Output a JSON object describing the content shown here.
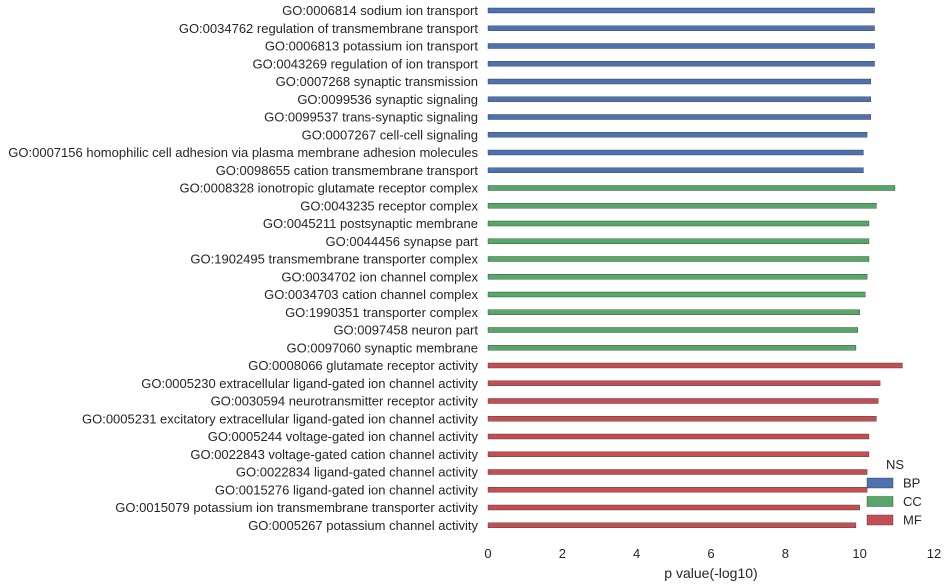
{
  "chart_data": {
    "type": "bar",
    "orientation": "horizontal",
    "title": "",
    "xlabel": "p value(-log10)",
    "ylabel": "",
    "xlim": [
      0,
      12
    ],
    "x_ticks": [
      "0",
      "2",
      "4",
      "6",
      "8",
      "10",
      "12"
    ],
    "grid": false,
    "legend": {
      "title": "NS",
      "placement": "bottom-right",
      "entries": [
        {
          "name": "BP",
          "color": "#4c72b0"
        },
        {
          "name": "CC",
          "color": "#55a868"
        },
        {
          "name": "MF",
          "color": "#c44e52"
        }
      ]
    },
    "bars": [
      {
        "label": "GO:0006814 sodium ion transport",
        "group": "BP",
        "value": 10.4
      },
      {
        "label": "GO:0034762 regulation of transmembrane transport",
        "group": "BP",
        "value": 10.4
      },
      {
        "label": "GO:0006813 potassium ion transport",
        "group": "BP",
        "value": 10.4
      },
      {
        "label": "GO:0043269 regulation of ion transport",
        "group": "BP",
        "value": 10.4
      },
      {
        "label": "GO:0007268 synaptic transmission",
        "group": "BP",
        "value": 10.3
      },
      {
        "label": "GO:0099536 synaptic signaling",
        "group": "BP",
        "value": 10.3
      },
      {
        "label": "GO:0099537 trans-synaptic signaling",
        "group": "BP",
        "value": 10.3
      },
      {
        "label": "GO:0007267 cell-cell signaling",
        "group": "BP",
        "value": 10.2
      },
      {
        "label": "GO:0007156 homophilic cell adhesion via plasma membrane adhesion molecules",
        "group": "BP",
        "value": 10.1
      },
      {
        "label": "GO:0098655 cation transmembrane transport",
        "group": "BP",
        "value": 10.1
      },
      {
        "label": "GO:0008328 ionotropic glutamate receptor complex",
        "group": "CC",
        "value": 10.95
      },
      {
        "label": "GO:0043235 receptor complex",
        "group": "CC",
        "value": 10.45
      },
      {
        "label": "GO:0045211 postsynaptic membrane",
        "group": "CC",
        "value": 10.25
      },
      {
        "label": "GO:0044456 synapse part",
        "group": "CC",
        "value": 10.25
      },
      {
        "label": "GO:1902495 transmembrane transporter complex",
        "group": "CC",
        "value": 10.25
      },
      {
        "label": "GO:0034702 ion channel complex",
        "group": "CC",
        "value": 10.2
      },
      {
        "label": "GO:0034703 cation channel complex",
        "group": "CC",
        "value": 10.15
      },
      {
        "label": "GO:1990351 transporter complex",
        "group": "CC",
        "value": 10.0
      },
      {
        "label": "GO:0097458 neuron part",
        "group": "CC",
        "value": 9.95
      },
      {
        "label": "GO:0097060 synaptic membrane",
        "group": "CC",
        "value": 9.9
      },
      {
        "label": "GO:0008066 glutamate receptor activity",
        "group": "MF",
        "value": 11.15
      },
      {
        "label": "GO:0005230 extracellular ligand-gated ion channel activity",
        "group": "MF",
        "value": 10.55
      },
      {
        "label": "GO:0030594 neurotransmitter receptor activity",
        "group": "MF",
        "value": 10.5
      },
      {
        "label": "GO:0005231 excitatory extracellular ligand-gated ion channel activity",
        "group": "MF",
        "value": 10.45
      },
      {
        "label": "GO:0005244 voltage-gated ion channel activity",
        "group": "MF",
        "value": 10.25
      },
      {
        "label": "GO:0022843 voltage-gated cation channel activity",
        "group": "MF",
        "value": 10.25
      },
      {
        "label": "GO:0022834 ligand-gated channel activity",
        "group": "MF",
        "value": 10.2
      },
      {
        "label": "GO:0015276 ligand-gated ion channel activity",
        "group": "MF",
        "value": 10.2
      },
      {
        "label": "GO:0015079 potassium ion transmembrane transporter activity",
        "group": "MF",
        "value": 10.0
      },
      {
        "label": "GO:0005267 potassium channel activity",
        "group": "MF",
        "value": 9.9
      }
    ]
  }
}
